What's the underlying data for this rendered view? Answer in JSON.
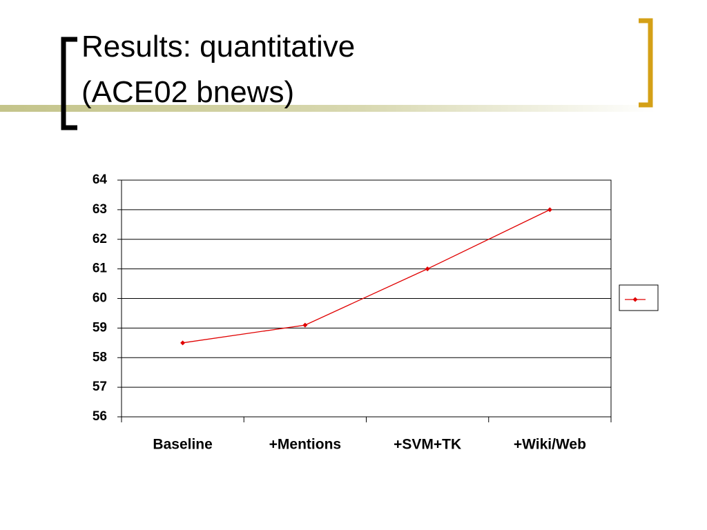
{
  "chart_data": {
    "type": "line",
    "title": [
      "Results: quantitative",
      "(ACE02 bnews)"
    ],
    "categories": [
      "Baseline",
      "+Mentions",
      "+SVM+TK",
      "+Wiki/Web"
    ],
    "values": [
      58.5,
      59.1,
      61,
      63
    ],
    "color": "#e00000",
    "ylim": [
      56,
      64
    ],
    "yticks": [
      56,
      57,
      58,
      59,
      60,
      61,
      62,
      63,
      64
    ],
    "grid": true,
    "legend": "right"
  }
}
